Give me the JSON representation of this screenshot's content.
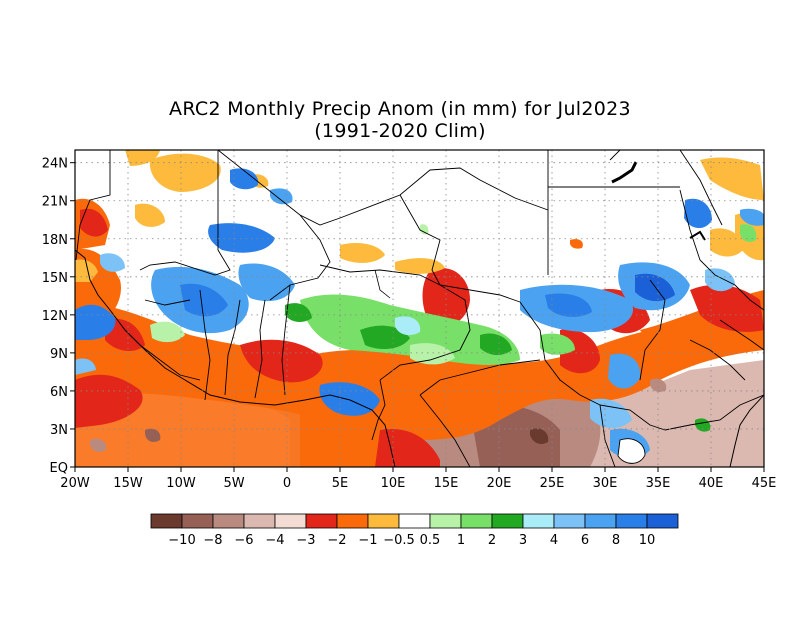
{
  "title": {
    "line1": "ARC2 Monthly Precip Anom (in mm) for Jul2023",
    "line2": "(1991-2020 Clim)"
  },
  "map": {
    "lon_range": [
      -20,
      45
    ],
    "lat_range": [
      0,
      25
    ],
    "x_ticks": [
      "20W",
      "15W",
      "10W",
      "5W",
      "0",
      "5E",
      "10E",
      "15E",
      "20E",
      "25E",
      "30E",
      "35E",
      "40E",
      "45E"
    ],
    "y_ticks": [
      "EQ",
      "3N",
      "6N",
      "9N",
      "12N",
      "15N",
      "18N",
      "21N",
      "24N"
    ],
    "grid": "dotted"
  },
  "colorbar": {
    "colors": [
      "#6b3a2e",
      "#966057",
      "#b98b80",
      "#dcb9b0",
      "#f3dcd4",
      "#e2261a",
      "#fa6a0a",
      "#fdba3c",
      "#ffffff",
      "#b8f2a8",
      "#78e068",
      "#22a823",
      "#aaecf8",
      "#7cc2f6",
      "#4aa2f0",
      "#2a7ee8",
      "#1b60d6"
    ],
    "labels": [
      "-10",
      "-8",
      "-6",
      "-4",
      "-3",
      "-2",
      "-1",
      "-0.5",
      "0.5",
      "1",
      "2",
      "3",
      "4",
      "6",
      "8",
      "10"
    ]
  }
}
